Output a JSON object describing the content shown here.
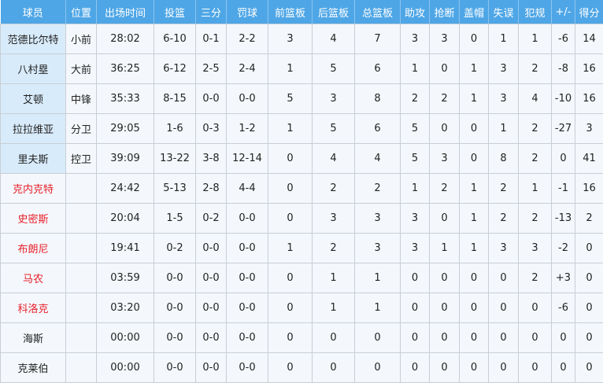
{
  "colors": {
    "header_bg": "#4ea6e6",
    "starter_name_bg": "#d8ebfb",
    "row_bg": "#f4f8fc",
    "bench_name": "#e8202a"
  },
  "headers": [
    "球员",
    "位置",
    "出场时间",
    "投篮",
    "三分",
    "罚球",
    "前篮板",
    "后篮板",
    "总篮板",
    "助攻",
    "抢断",
    "盖帽",
    "失误",
    "犯规",
    "+/-",
    "得分"
  ],
  "rows": [
    {
      "name": "范德比尔特",
      "starter": true,
      "cells": [
        "小前",
        "28:02",
        "6-10",
        "0-1",
        "2-2",
        "3",
        "4",
        "7",
        "3",
        "3",
        "0",
        "1",
        "1",
        "-6",
        "14"
      ]
    },
    {
      "name": "八村塁",
      "starter": true,
      "cells": [
        "大前",
        "36:25",
        "6-12",
        "2-5",
        "2-4",
        "1",
        "5",
        "6",
        "1",
        "0",
        "1",
        "3",
        "2",
        "-8",
        "16"
      ]
    },
    {
      "name": "艾顿",
      "starter": true,
      "cells": [
        "中锋",
        "35:33",
        "8-15",
        "0-0",
        "0-0",
        "5",
        "3",
        "8",
        "2",
        "2",
        "1",
        "3",
        "4",
        "-10",
        "16"
      ]
    },
    {
      "name": "拉拉维亚",
      "starter": true,
      "cells": [
        "分卫",
        "29:05",
        "1-6",
        "0-3",
        "1-2",
        "1",
        "5",
        "6",
        "5",
        "0",
        "0",
        "1",
        "2",
        "-27",
        "3"
      ]
    },
    {
      "name": "里夫斯",
      "starter": true,
      "cells": [
        "控卫",
        "39:09",
        "13-22",
        "3-8",
        "12-14",
        "0",
        "4",
        "4",
        "5",
        "3",
        "0",
        "8",
        "2",
        "0",
        "41"
      ]
    },
    {
      "name": "克内克特",
      "starter": false,
      "cells": [
        "",
        "24:42",
        "5-13",
        "2-8",
        "4-4",
        "0",
        "2",
        "2",
        "1",
        "2",
        "1",
        "2",
        "1",
        "-1",
        "16"
      ]
    },
    {
      "name": "史密斯",
      "starter": false,
      "cells": [
        "",
        "20:04",
        "1-5",
        "0-2",
        "0-0",
        "0",
        "3",
        "3",
        "3",
        "0",
        "1",
        "2",
        "2",
        "-13",
        "2"
      ]
    },
    {
      "name": "布朗尼",
      "starter": false,
      "cells": [
        "",
        "19:41",
        "0-2",
        "0-0",
        "0-0",
        "1",
        "2",
        "3",
        "3",
        "1",
        "1",
        "3",
        "3",
        "-2",
        "0"
      ]
    },
    {
      "name": "马农",
      "starter": false,
      "cells": [
        "",
        "03:59",
        "0-0",
        "0-0",
        "0-0",
        "0",
        "1",
        "1",
        "0",
        "0",
        "0",
        "0",
        "2",
        "+3",
        "0"
      ]
    },
    {
      "name": "科洛克",
      "starter": false,
      "cells": [
        "",
        "03:20",
        "0-0",
        "0-0",
        "0-0",
        "0",
        "1",
        "1",
        "0",
        "0",
        "0",
        "0",
        "0",
        "-6",
        "0"
      ]
    },
    {
      "name": "海斯",
      "starter": false,
      "dnp": true,
      "cells": [
        "",
        "00:00",
        "0-0",
        "0-0",
        "0-0",
        "0",
        "0",
        "0",
        "0",
        "0",
        "0",
        "0",
        "0",
        "0",
        "0"
      ]
    },
    {
      "name": "克莱伯",
      "starter": false,
      "dnp": true,
      "cells": [
        "",
        "00:00",
        "0-0",
        "0-0",
        "0-0",
        "0",
        "0",
        "0",
        "0",
        "0",
        "0",
        "0",
        "0",
        "0",
        "0"
      ]
    }
  ]
}
